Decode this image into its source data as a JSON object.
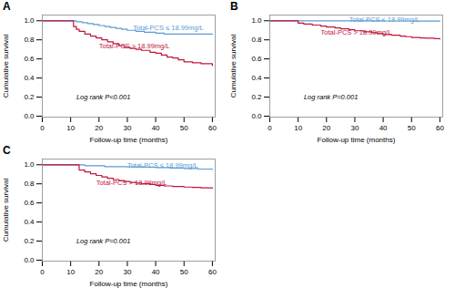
{
  "chart_data": [
    {
      "type": "step",
      "title": "A",
      "x_label": "Follow-up time (months)",
      "y_label": "Cumulative survival",
      "xlim": [
        0,
        61
      ],
      "ylim": [
        -0.01,
        1.06
      ],
      "xticks": [
        0,
        10,
        20,
        30,
        40,
        50,
        60
      ],
      "yticks": [
        {
          "value": 0.0,
          "label": "0.0"
        },
        0.2,
        0.4,
        0.6,
        0.8,
        {
          "value": 1.0,
          "label": "1.0"
        }
      ],
      "series": [
        {
          "color": "#5B9BD5",
          "x": [
            0,
            9,
            10,
            12,
            14,
            16,
            18,
            20,
            22,
            24,
            26,
            28,
            30,
            33,
            36,
            40,
            43,
            46,
            50,
            55,
            60
          ],
          "values": [
            1.0,
            1.0,
            1.0,
            0.99,
            0.98,
            0.97,
            0.96,
            0.95,
            0.94,
            0.93,
            0.92,
            0.91,
            0.9,
            0.89,
            0.88,
            0.87,
            0.86,
            0.86,
            0.86,
            0.86,
            0.86
          ]
        },
        {
          "color": "#C0143C",
          "x": [
            0,
            10,
            11,
            12,
            13,
            15,
            17,
            19,
            21,
            23,
            25,
            27,
            29,
            31,
            33,
            35,
            38,
            40,
            42,
            44,
            46,
            48,
            50,
            53,
            56,
            60
          ],
          "values": [
            1.0,
            1.0,
            0.94,
            0.91,
            0.89,
            0.86,
            0.84,
            0.82,
            0.8,
            0.78,
            0.76,
            0.74,
            0.72,
            0.71,
            0.7,
            0.69,
            0.67,
            0.66,
            0.64,
            0.62,
            0.61,
            0.59,
            0.57,
            0.56,
            0.55,
            0.53
          ]
        }
      ],
      "annotations": [
        {
          "text": "Total-PCS ≤ 18.99mg/L",
          "x": 32,
          "y": 0.93,
          "color": "#5B9BD5"
        },
        {
          "text": "Total-PCS > 18.99mg/L",
          "x": 20,
          "y": 0.73,
          "color": "#C0143C"
        },
        {
          "text": "Log rank P<0.001",
          "x": 12,
          "y": 0.2
        }
      ]
    },
    {
      "type": "step",
      "title": "B",
      "x_label": "Follow-up time (months)",
      "y_label": "Cumulative survival",
      "xlim": [
        0,
        61
      ],
      "ylim": [
        -0.01,
        1.06
      ],
      "xticks": [
        0,
        10,
        20,
        30,
        40,
        50,
        60
      ],
      "yticks": [
        {
          "value": 0.0,
          "label": "0.0"
        },
        0.2,
        0.4,
        0.6,
        0.8,
        {
          "value": 1.0,
          "label": "1.0"
        }
      ],
      "series": [
        {
          "color": "#5B9BD5",
          "x": [
            0,
            20,
            30,
            40,
            50,
            60
          ],
          "values": [
            1.0,
            1.0,
            1.0,
            0.998,
            0.997,
            0.997
          ]
        },
        {
          "color": "#C0143C",
          "x": [
            0,
            8,
            10,
            12,
            15,
            18,
            20,
            23,
            25,
            28,
            30,
            33,
            36,
            38,
            40,
            43,
            46,
            48,
            50,
            53,
            55,
            58,
            60
          ],
          "values": [
            1.0,
            1.0,
            0.975,
            0.965,
            0.955,
            0.945,
            0.935,
            0.925,
            0.915,
            0.905,
            0.895,
            0.885,
            0.875,
            0.865,
            0.855,
            0.848,
            0.84,
            0.833,
            0.825,
            0.82,
            0.818,
            0.813,
            0.81
          ]
        }
      ],
      "annotations": [
        {
          "text": "Total-PCS ≤ 18.99mg/L",
          "x": 28,
          "y": 1.008,
          "color": "#5B9BD5"
        },
        {
          "text": "Total-PCS > 18.99mg/L",
          "x": 18,
          "y": 0.875,
          "color": "#C0143C"
        },
        {
          "text": "Log rank P=0.001",
          "x": 12,
          "y": 0.2
        }
      ]
    },
    {
      "type": "step",
      "title": "C",
      "x_label": "Follow-up time (months)",
      "y_label": "Cumulative survival",
      "xlim": [
        0,
        61
      ],
      "ylim": [
        -0.01,
        1.06
      ],
      "xticks": [
        0,
        10,
        20,
        30,
        40,
        50,
        60
      ],
      "yticks": [
        {
          "value": 0.0,
          "label": "0.0"
        },
        0.2,
        0.4,
        0.6,
        0.8,
        {
          "value": 1.0,
          "label": "1.0"
        }
      ],
      "series": [
        {
          "color": "#5B9BD5",
          "x": [
            0,
            12,
            15,
            18,
            22,
            26,
            30,
            35,
            40,
            45,
            50,
            55,
            60
          ],
          "values": [
            1.0,
            1.0,
            0.99,
            0.99,
            0.98,
            0.98,
            0.977,
            0.975,
            0.97,
            0.965,
            0.96,
            0.955,
            0.95
          ]
        },
        {
          "color": "#C0143C",
          "x": [
            0,
            10,
            13,
            15,
            17,
            19,
            21,
            23,
            25,
            27,
            29,
            31,
            33,
            35,
            38,
            40,
            43,
            46,
            50,
            53,
            56,
            60
          ],
          "values": [
            1.0,
            1.0,
            0.945,
            0.925,
            0.905,
            0.888,
            0.872,
            0.858,
            0.845,
            0.835,
            0.825,
            0.815,
            0.808,
            0.8,
            0.793,
            0.785,
            0.778,
            0.772,
            0.766,
            0.762,
            0.758,
            0.755
          ]
        }
      ],
      "annotations": [
        {
          "text": "Total-PCS ≤ 18.99mg/L",
          "x": 30,
          "y": 0.99,
          "color": "#5B9BD5"
        },
        {
          "text": "Total-PCS > 18.99mg/L",
          "x": 19,
          "y": 0.81,
          "color": "#C0143C"
        },
        {
          "text": "Log rank P=0.001",
          "x": 12,
          "y": 0.2
        }
      ]
    }
  ]
}
